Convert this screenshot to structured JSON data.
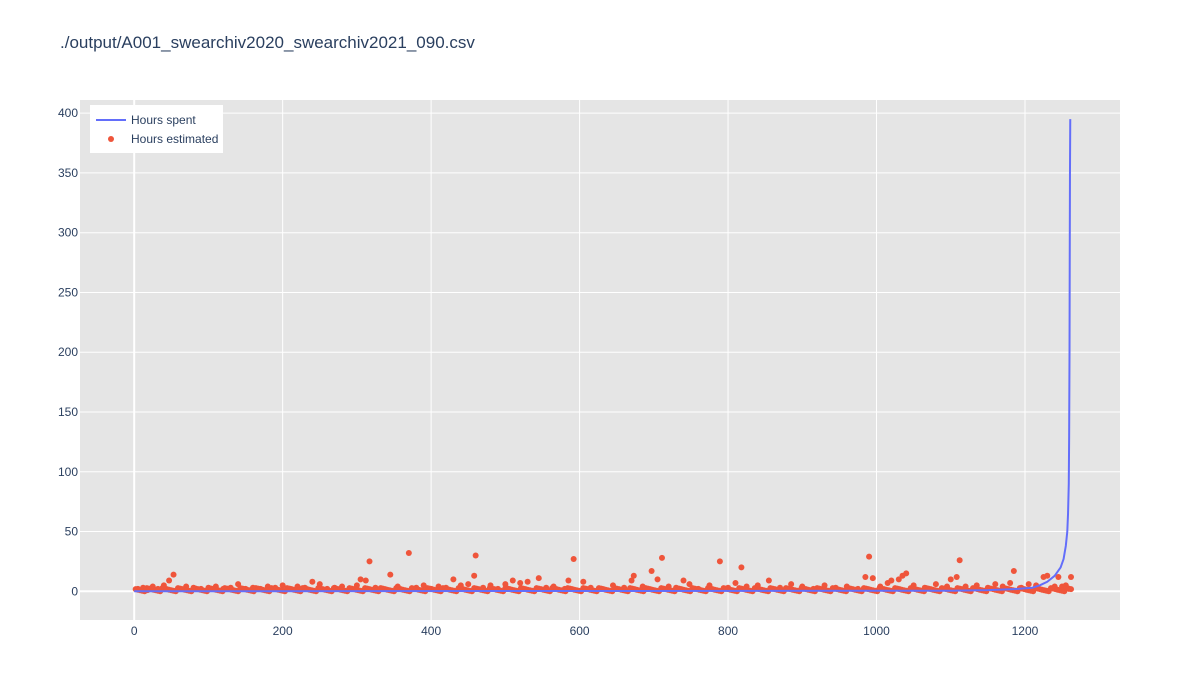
{
  "chart_data": {
    "type": "scatter",
    "title": "./output/A001_swearchiv2020_swearchiv2021_090.csv",
    "xlabel": "",
    "ylabel": "",
    "xlim": [
      -73,
      1328
    ],
    "ylim": [
      -24,
      411
    ],
    "x_ticks": [
      0,
      200,
      400,
      600,
      800,
      1000,
      1200
    ],
    "y_ticks": [
      0,
      50,
      100,
      150,
      200,
      250,
      300,
      350,
      400
    ],
    "grid": true,
    "legend_position": "top-left",
    "plot_background": "#e5e5e5",
    "series": [
      {
        "name": "Hours spent",
        "mode": "line",
        "color": "#636efa",
        "x": [
          0,
          1100,
          1150,
          1190,
          1210,
          1220,
          1230,
          1240,
          1248,
          1252,
          1255,
          1257,
          1258,
          1259,
          1259.5,
          1260,
          1260.3,
          1260.6,
          1261
        ],
        "y": [
          0,
          0.5,
          1,
          2,
          3,
          5,
          8,
          13,
          20,
          27,
          38,
          50,
          65,
          90,
          130,
          200,
          280,
          350,
          395
        ]
      },
      {
        "name": "Hours estimated",
        "mode": "markers",
        "color": "#ef553b",
        "points": [
          [
            5,
            2
          ],
          [
            12,
            3
          ],
          [
            18,
            1
          ],
          [
            25,
            4
          ],
          [
            32,
            2
          ],
          [
            40,
            5
          ],
          [
            47,
            9
          ],
          [
            53,
            14
          ],
          [
            60,
            2
          ],
          [
            70,
            4
          ],
          [
            80,
            3
          ],
          [
            90,
            2
          ],
          [
            100,
            3
          ],
          [
            110,
            4
          ],
          [
            120,
            2
          ],
          [
            130,
            3
          ],
          [
            140,
            6
          ],
          [
            150,
            2
          ],
          [
            160,
            3
          ],
          [
            170,
            2
          ],
          [
            180,
            4
          ],
          [
            190,
            3
          ],
          [
            200,
            5
          ],
          [
            210,
            2
          ],
          [
            220,
            4
          ],
          [
            230,
            3
          ],
          [
            240,
            8
          ],
          [
            250,
            6
          ],
          [
            260,
            2
          ],
          [
            270,
            3
          ],
          [
            280,
            4
          ],
          [
            290,
            2
          ],
          [
            300,
            5
          ],
          [
            305,
            10
          ],
          [
            312,
            9
          ],
          [
            317,
            25
          ],
          [
            325,
            3
          ],
          [
            335,
            2
          ],
          [
            345,
            14
          ],
          [
            355,
            4
          ],
          [
            370,
            32
          ],
          [
            380,
            3
          ],
          [
            390,
            5
          ],
          [
            400,
            2
          ],
          [
            410,
            4
          ],
          [
            420,
            3
          ],
          [
            430,
            10
          ],
          [
            440,
            5
          ],
          [
            450,
            6
          ],
          [
            458,
            13
          ],
          [
            460,
            30
          ],
          [
            470,
            3
          ],
          [
            480,
            5
          ],
          [
            490,
            2
          ],
          [
            500,
            6
          ],
          [
            510,
            9
          ],
          [
            520,
            7
          ],
          [
            530,
            8
          ],
          [
            545,
            11
          ],
          [
            555,
            3
          ],
          [
            565,
            4
          ],
          [
            580,
            2
          ],
          [
            585,
            9
          ],
          [
            592,
            27
          ],
          [
            605,
            8
          ],
          [
            615,
            3
          ],
          [
            630,
            2
          ],
          [
            645,
            5
          ],
          [
            660,
            3
          ],
          [
            670,
            9
          ],
          [
            673,
            13
          ],
          [
            685,
            4
          ],
          [
            697,
            17
          ],
          [
            705,
            10
          ],
          [
            711,
            28
          ],
          [
            720,
            4
          ],
          [
            730,
            3
          ],
          [
            740,
            9
          ],
          [
            748,
            6
          ],
          [
            760,
            2
          ],
          [
            775,
            5
          ],
          [
            789,
            25
          ],
          [
            800,
            3
          ],
          [
            810,
            7
          ],
          [
            818,
            20
          ],
          [
            825,
            4
          ],
          [
            840,
            5
          ],
          [
            855,
            9
          ],
          [
            870,
            3
          ],
          [
            885,
            6
          ],
          [
            900,
            4
          ],
          [
            915,
            2
          ],
          [
            930,
            5
          ],
          [
            945,
            3
          ],
          [
            960,
            4
          ],
          [
            975,
            2
          ],
          [
            985,
            12
          ],
          [
            990,
            29
          ],
          [
            995,
            11
          ],
          [
            1005,
            4
          ],
          [
            1015,
            7
          ],
          [
            1020,
            9
          ],
          [
            1030,
            10
          ],
          [
            1035,
            13
          ],
          [
            1040,
            15
          ],
          [
            1050,
            5
          ],
          [
            1065,
            3
          ],
          [
            1080,
            6
          ],
          [
            1095,
            4
          ],
          [
            1100,
            10
          ],
          [
            1108,
            12
          ],
          [
            1112,
            26
          ],
          [
            1120,
            4
          ],
          [
            1135,
            5
          ],
          [
            1150,
            3
          ],
          [
            1160,
            6
          ],
          [
            1170,
            4
          ],
          [
            1180,
            7
          ],
          [
            1185,
            17
          ],
          [
            1195,
            3
          ],
          [
            1205,
            6
          ],
          [
            1215,
            5
          ],
          [
            1225,
            12
          ],
          [
            1230,
            13
          ],
          [
            1240,
            4
          ],
          [
            1245,
            12
          ],
          [
            1250,
            4
          ],
          [
            1255,
            5
          ],
          [
            1259,
            2
          ],
          [
            1262,
            12
          ]
        ]
      }
    ]
  }
}
